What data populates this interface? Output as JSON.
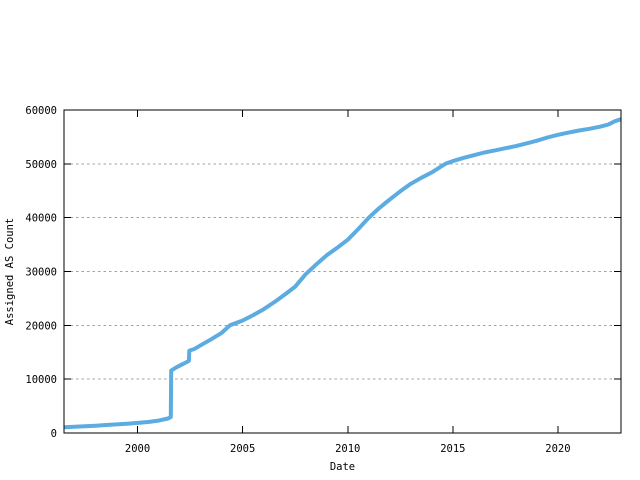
{
  "chart_data": {
    "type": "line",
    "title": "",
    "xlabel": "Date",
    "ylabel": "Assigned AS Count",
    "xlim": [
      1996.5,
      2023
    ],
    "ylim": [
      0,
      60000
    ],
    "x_ticks": [
      {
        "value": 2000,
        "label": "2000"
      },
      {
        "value": 2005,
        "label": "2005"
      },
      {
        "value": 2010,
        "label": "2010"
      },
      {
        "value": 2015,
        "label": "2015"
      },
      {
        "value": 2020,
        "label": "2020"
      }
    ],
    "y_ticks": [
      {
        "value": 0,
        "label": "0"
      },
      {
        "value": 10000,
        "label": "10000"
      },
      {
        "value": 20000,
        "label": "20000"
      },
      {
        "value": 30000,
        "label": "30000"
      },
      {
        "value": 40000,
        "label": "40000"
      },
      {
        "value": 50000,
        "label": "50000"
      },
      {
        "value": 60000,
        "label": "60000"
      }
    ],
    "grid": {
      "horizontal": true,
      "vertical": false,
      "style": "dashed",
      "color": "#a0a0a0"
    },
    "legend_position": "none",
    "line_style": {
      "color": "#5cace1",
      "width": 4
    },
    "border_color": "#000000",
    "background_color": "#ffffff",
    "series": [
      {
        "name": "Assigned AS Count",
        "points": [
          [
            1996.5,
            1050
          ],
          [
            1997,
            1150
          ],
          [
            1997.5,
            1250
          ],
          [
            1998,
            1350
          ],
          [
            1998.5,
            1480
          ],
          [
            1999,
            1600
          ],
          [
            1999.5,
            1730
          ],
          [
            2000,
            1870
          ],
          [
            2000.5,
            2050
          ],
          [
            2001,
            2300
          ],
          [
            2001.45,
            2700
          ],
          [
            2001.58,
            2950
          ],
          [
            2001.6,
            11600
          ],
          [
            2001.8,
            12100
          ],
          [
            2002,
            12500
          ],
          [
            2002.2,
            12900
          ],
          [
            2002.44,
            13400
          ],
          [
            2002.46,
            15300
          ],
          [
            2002.7,
            15600
          ],
          [
            2003,
            16300
          ],
          [
            2003.5,
            17400
          ],
          [
            2004,
            18600
          ],
          [
            2004.4,
            20000
          ],
          [
            2005,
            20900
          ],
          [
            2005.5,
            21900
          ],
          [
            2006,
            23000
          ],
          [
            2006.5,
            24300
          ],
          [
            2007,
            25700
          ],
          [
            2007.5,
            27200
          ],
          [
            2008,
            29500
          ],
          [
            2008.5,
            31300
          ],
          [
            2009,
            33000
          ],
          [
            2009.5,
            34400
          ],
          [
            2010,
            35900
          ],
          [
            2010.5,
            37900
          ],
          [
            2011,
            40000
          ],
          [
            2011.5,
            41800
          ],
          [
            2012,
            43400
          ],
          [
            2012.5,
            44900
          ],
          [
            2013,
            46300
          ],
          [
            2013.5,
            47400
          ],
          [
            2014,
            48400
          ],
          [
            2014.4,
            49400
          ],
          [
            2014.65,
            50000
          ],
          [
            2015,
            50500
          ],
          [
            2015.5,
            51100
          ],
          [
            2016,
            51600
          ],
          [
            2016.5,
            52100
          ],
          [
            2017,
            52500
          ],
          [
            2017.5,
            52900
          ],
          [
            2018,
            53300
          ],
          [
            2018.5,
            53800
          ],
          [
            2019,
            54300
          ],
          [
            2019.5,
            54900
          ],
          [
            2020,
            55400
          ],
          [
            2020.5,
            55800
          ],
          [
            2021,
            56200
          ],
          [
            2021.5,
            56500
          ],
          [
            2022,
            56900
          ],
          [
            2022.4,
            57300
          ],
          [
            2022.7,
            57900
          ],
          [
            2023,
            58300
          ]
        ]
      }
    ]
  }
}
